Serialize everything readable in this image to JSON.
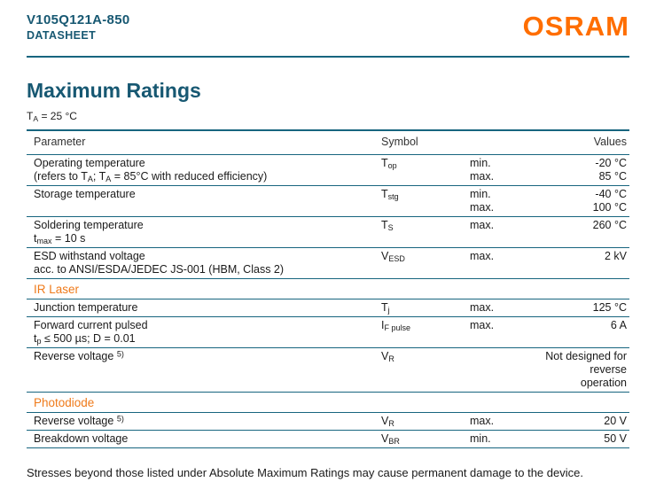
{
  "colors": {
    "brand": "#175872",
    "line": "#17657f",
    "accent": "#ef7a1a",
    "logo": "#ff6e00",
    "text": "#1a1a1a"
  },
  "header": {
    "part_number": "V105Q121A-850",
    "doc_type": "DATASHEET",
    "logo_text": "OSRAM"
  },
  "page": {
    "title": "Maximum Ratings",
    "condition": "T~A~ = 25 °C"
  },
  "table": {
    "headers": [
      "Parameter",
      "Symbol",
      "Values"
    ],
    "rows": [
      {
        "type": "data",
        "param": [
          "Operating temperature",
          "(refers to T~A~; T~A~ = 85°C with reduced efficiency)"
        ],
        "symbol": "T~op~",
        "entries": [
          [
            "min.",
            "-20 °C"
          ],
          [
            "max.",
            "85 °C"
          ]
        ]
      },
      {
        "type": "data",
        "param": [
          "Storage temperature"
        ],
        "symbol": "T~stg~",
        "entries": [
          [
            "min.",
            "-40 °C"
          ],
          [
            "max.",
            "100 °C"
          ]
        ]
      },
      {
        "type": "data",
        "param": [
          "Soldering temperature",
          "t~max~ = 10 s"
        ],
        "symbol": "T~S~",
        "entries": [
          [
            "max.",
            "260 °C"
          ]
        ]
      },
      {
        "type": "data",
        "param": [
          "ESD withstand voltage",
          "acc. to ANSI/ESDA/JEDEC JS-001 (HBM, Class 2)"
        ],
        "symbol": "V~ESD~",
        "entries": [
          [
            "max.",
            "2 kV"
          ]
        ]
      },
      {
        "type": "section",
        "label": "IR Laser"
      },
      {
        "type": "data",
        "param": [
          "Junction temperature"
        ],
        "symbol": "T~j~",
        "entries": [
          [
            "max.",
            "125 °C"
          ]
        ]
      },
      {
        "type": "data",
        "param": [
          "Forward current pulsed",
          "t~p~ ≤ 500 µs; D = 0.01"
        ],
        "symbol": "I~F pulse~",
        "entries": [
          [
            "max.",
            "6 A"
          ]
        ]
      },
      {
        "type": "data",
        "param": [
          "Reverse voltage ^5)^"
        ],
        "symbol": "V~R~",
        "entries": [
          [
            "",
            "Not designed for"
          ],
          [
            "",
            "reverse operation"
          ]
        ]
      },
      {
        "type": "section",
        "label": "Photodiode"
      },
      {
        "type": "data",
        "param": [
          "Reverse voltage ^5)^"
        ],
        "symbol": "V~R~",
        "entries": [
          [
            "max.",
            "20 V"
          ]
        ]
      },
      {
        "type": "data",
        "param": [
          "Breakdown voltage"
        ],
        "symbol": "V~BR~",
        "entries": [
          [
            "min.",
            "50 V"
          ]
        ]
      }
    ]
  },
  "footer": {
    "note": "Stresses beyond those listed under Absolute Maximum Ratings may cause permanent damage to the device."
  }
}
